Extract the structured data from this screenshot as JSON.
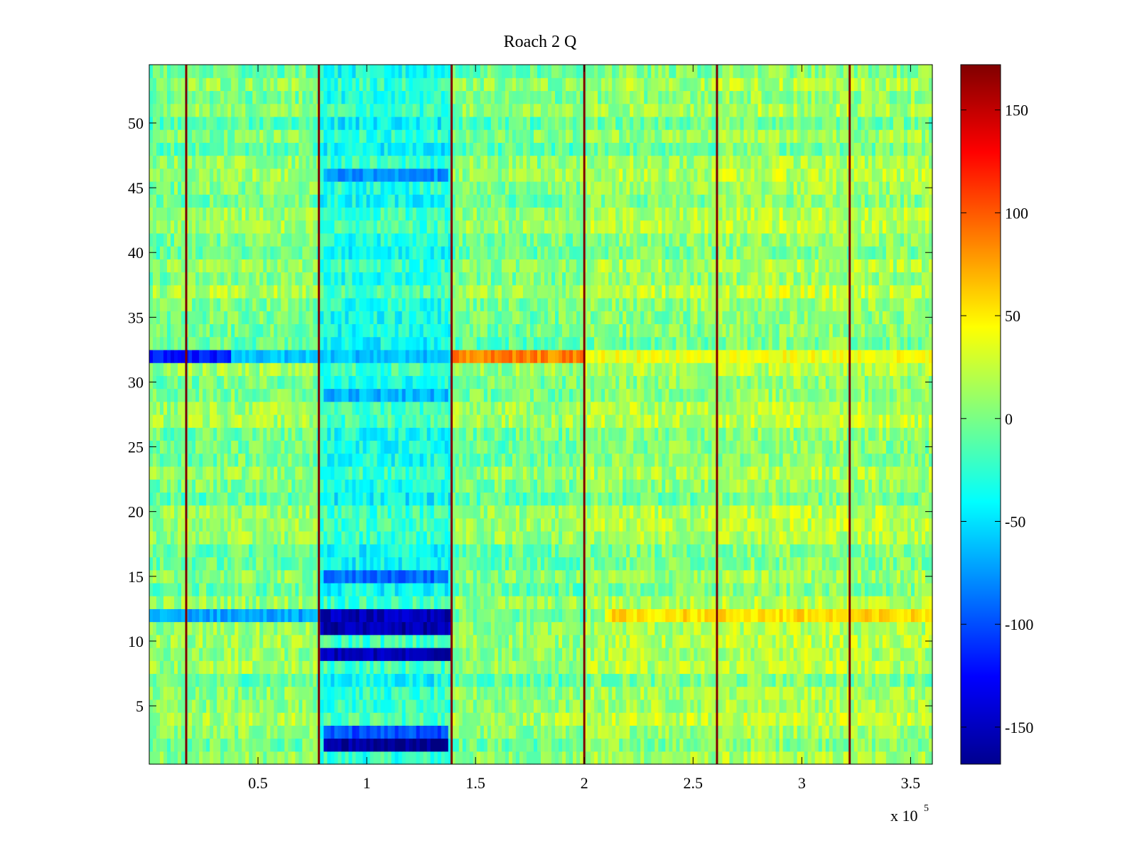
{
  "chart_data": {
    "type": "heatmap",
    "title": "Roach 2 Q",
    "xlabel": "",
    "ylabel": "",
    "x_exponent_label": "x 10",
    "x_exponent_power": "5",
    "xlim": [
      0,
      3.6
    ],
    "ylim": [
      0.5,
      54.5
    ],
    "xticks": [
      0.5,
      1,
      1.5,
      2,
      2.5,
      3,
      3.5
    ],
    "xtick_labels": [
      "0.5",
      "1",
      "1.5",
      "2",
      "2.5",
      "3",
      "3.5"
    ],
    "yticks": [
      5,
      10,
      15,
      20,
      25,
      30,
      35,
      40,
      45,
      50
    ],
    "ytick_labels": [
      "5",
      "10",
      "15",
      "20",
      "25",
      "30",
      "35",
      "40",
      "45",
      "50"
    ],
    "colorbar": {
      "colormap": "jet",
      "range": [
        -168,
        172
      ],
      "ticks": [
        -150,
        -100,
        -50,
        0,
        50,
        100,
        150
      ],
      "tick_labels": [
        "-150",
        "-100",
        "-50",
        "0",
        "50",
        "100",
        "150"
      ]
    },
    "rows": 54,
    "segment_boundaries": [
      0.17,
      0.78,
      1.39,
      2.0,
      2.61,
      3.22
    ],
    "segments": [
      {
        "x": [
          0,
          0.17
        ],
        "mean": 0
      },
      {
        "x": [
          0.17,
          0.78
        ],
        "mean": 2
      },
      {
        "x": [
          0.78,
          1.39
        ],
        "mean": -30
      },
      {
        "x": [
          1.39,
          2.0
        ],
        "mean": 0
      },
      {
        "x": [
          2.0,
          2.61
        ],
        "mean": 8
      },
      {
        "x": [
          2.61,
          3.22
        ],
        "mean": 12
      },
      {
        "x": [
          3.22,
          3.6
        ],
        "mean": 10
      }
    ],
    "notable_rows": [
      {
        "row": 32,
        "x": [
          0,
          0.37
        ],
        "value": -120
      },
      {
        "row": 32,
        "x": [
          0.37,
          1.39
        ],
        "value": -60
      },
      {
        "row": 32,
        "x": [
          1.39,
          2.0
        ],
        "value": 85
      },
      {
        "row": 32,
        "x": [
          2.0,
          3.6
        ],
        "value": 40
      },
      {
        "row": 12,
        "x": [
          0,
          0.78
        ],
        "value": -70
      },
      {
        "row": 12,
        "x": [
          0.78,
          1.39
        ],
        "value": -150
      },
      {
        "row": 12,
        "x": [
          2.1,
          3.6
        ],
        "value": 55
      },
      {
        "row": 11,
        "x": [
          0.78,
          1.39
        ],
        "value": -155
      },
      {
        "row": 9,
        "x": [
          0.78,
          1.39
        ],
        "value": -150
      },
      {
        "row": 2,
        "x": [
          0.8,
          1.37
        ],
        "value": -160
      },
      {
        "row": 3,
        "x": [
          0.8,
          1.37
        ],
        "value": -100
      },
      {
        "row": 15,
        "x": [
          0.8,
          1.37
        ],
        "value": -90
      },
      {
        "row": 46,
        "x": [
          0.8,
          1.37
        ],
        "value": -75
      },
      {
        "row": 29,
        "x": [
          0.8,
          1.37
        ],
        "value": -65
      }
    ],
    "boundary_value": 172
  }
}
